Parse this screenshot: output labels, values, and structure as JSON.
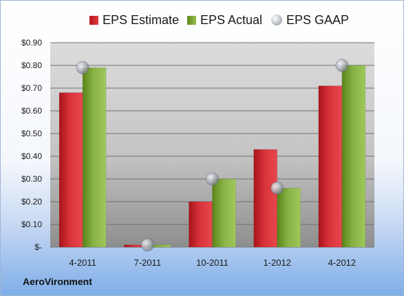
{
  "company": "AeroVironment",
  "chart_data": {
    "type": "bar",
    "categories": [
      "4-2011",
      "7-2011",
      "10-2011",
      "1-2012",
      "4-2012"
    ],
    "series": [
      {
        "name": "EPS Estimate",
        "values": [
          0.68,
          0.01,
          0.2,
          0.43,
          0.71
        ],
        "color": "#c8232a"
      },
      {
        "name": "EPS Actual",
        "values": [
          0.79,
          0.01,
          0.3,
          0.26,
          0.8
        ],
        "color": "#7aa53a"
      },
      {
        "name": "EPS GAAP",
        "values": [
          0.79,
          0.01,
          0.3,
          0.26,
          0.8
        ],
        "color": "#a0a6ae",
        "mark": "circle"
      }
    ],
    "y_ticks": [
      "$-",
      "$0.10",
      "$0.20",
      "$0.30",
      "$0.40",
      "$0.50",
      "$0.60",
      "$0.70",
      "$0.80",
      "$0.90"
    ],
    "ylim": [
      0,
      0.9
    ],
    "grid": true,
    "legend_position": "top"
  }
}
